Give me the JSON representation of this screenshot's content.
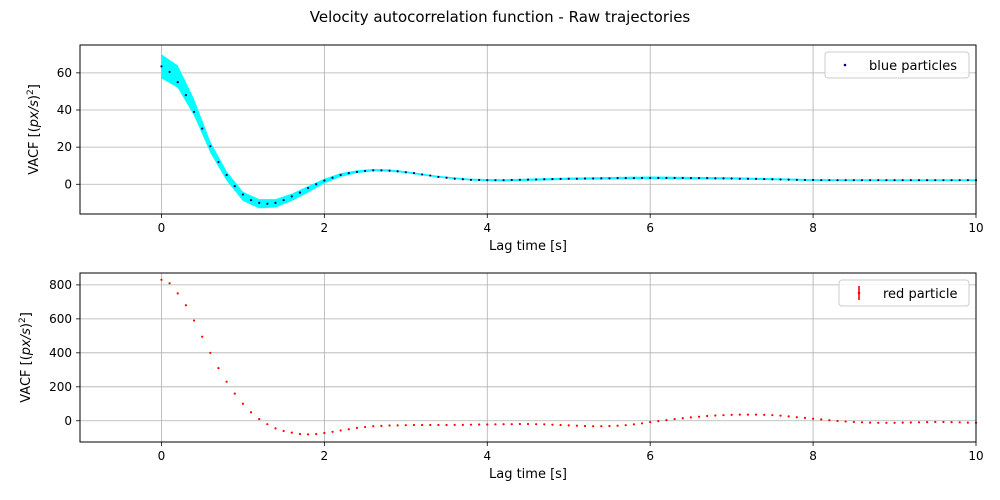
{
  "figure": {
    "title": "Velocity autocorrelation function - Raw trajectories"
  },
  "colors": {
    "band": "#00ffff",
    "blue_markers": "#00008b",
    "red_markers": "#ff0000",
    "grid": "#b0b0b0"
  },
  "chart_data": [
    {
      "type": "scatter",
      "xlabel": "Lag time [s]",
      "ylabel_main": "VACF [(",
      "ylabel_italic": "px/s",
      "ylabel_close": ")",
      "ylabel_sup": "2",
      "ylabel_end": "]",
      "xlim": [
        -1,
        10
      ],
      "ylim": [
        -16,
        75
      ],
      "xticks": [
        0,
        2,
        4,
        6,
        8,
        10
      ],
      "yticks": [
        0,
        20,
        40,
        60
      ],
      "grid": true,
      "legend": {
        "position": "top-right",
        "label": "blue particles"
      },
      "band": {
        "color": "#00ffff",
        "upper": [
          [
            0,
            70
          ],
          [
            0.2,
            64
          ],
          [
            0.4,
            46
          ],
          [
            0.6,
            23
          ],
          [
            0.8,
            7
          ],
          [
            1.0,
            -4
          ],
          [
            1.2,
            -8
          ],
          [
            1.4,
            -8
          ],
          [
            1.6,
            -5
          ],
          [
            1.8,
            -1
          ],
          [
            2.0,
            3
          ],
          [
            2.2,
            6
          ],
          [
            2.4,
            7.5
          ],
          [
            2.6,
            8.2
          ],
          [
            2.8,
            8
          ],
          [
            3.0,
            7
          ],
          [
            3.4,
            4.5
          ],
          [
            3.8,
            3
          ],
          [
            4.2,
            2.7
          ],
          [
            5,
            3.6
          ],
          [
            6,
            4.2
          ],
          [
            7,
            3.8
          ],
          [
            8,
            2.8
          ],
          [
            9,
            2.7
          ],
          [
            10,
            2.7
          ]
        ],
        "lower": [
          [
            0,
            57
          ],
          [
            0.2,
            52
          ],
          [
            0.4,
            37
          ],
          [
            0.6,
            17
          ],
          [
            0.8,
            2
          ],
          [
            1.0,
            -9
          ],
          [
            1.2,
            -13
          ],
          [
            1.4,
            -12.5
          ],
          [
            1.6,
            -9
          ],
          [
            1.8,
            -4.5
          ],
          [
            2.0,
            0.5
          ],
          [
            2.2,
            4
          ],
          [
            2.4,
            6
          ],
          [
            2.6,
            7
          ],
          [
            2.8,
            6.8
          ],
          [
            3.0,
            6
          ],
          [
            3.4,
            3.6
          ],
          [
            3.8,
            2
          ],
          [
            4.2,
            1.5
          ],
          [
            5,
            2.4
          ],
          [
            6,
            2.8
          ],
          [
            7,
            2.6
          ],
          [
            8,
            1.8
          ],
          [
            9,
            1.7
          ],
          [
            10,
            1.7
          ]
        ]
      },
      "series": [
        {
          "name": "blue particles",
          "color": "#00008b",
          "points": [
            [
              0,
              63.5
            ],
            [
              0.1,
              60.5
            ],
            [
              0.2,
              55
            ],
            [
              0.3,
              48
            ],
            [
              0.4,
              39
            ],
            [
              0.5,
              30
            ],
            [
              0.6,
              20.5
            ],
            [
              0.7,
              12
            ],
            [
              0.8,
              5
            ],
            [
              0.9,
              -1
            ],
            [
              1.0,
              -5.5
            ],
            [
              1.1,
              -8.5
            ],
            [
              1.2,
              -10
            ],
            [
              1.3,
              -10.5
            ],
            [
              1.4,
              -10
            ],
            [
              1.5,
              -8.5
            ],
            [
              1.6,
              -6.5
            ],
            [
              1.7,
              -4.5
            ],
            [
              1.8,
              -2
            ],
            [
              1.9,
              0
            ],
            [
              2.0,
              2
            ],
            [
              2.1,
              3.5
            ],
            [
              2.2,
              5
            ],
            [
              2.3,
              6
            ],
            [
              2.4,
              6.7
            ],
            [
              2.5,
              7.2
            ],
            [
              2.6,
              7.5
            ],
            [
              2.7,
              7.5
            ],
            [
              2.8,
              7.3
            ],
            [
              2.9,
              7
            ],
            [
              3.0,
              6.5
            ],
            [
              3.1,
              6
            ],
            [
              3.2,
              5.3
            ],
            [
              3.3,
              4.7
            ],
            [
              3.4,
              4
            ],
            [
              3.5,
              3.5
            ],
            [
              3.6,
              3
            ],
            [
              3.7,
              2.7
            ],
            [
              3.8,
              2.4
            ],
            [
              3.9,
              2.3
            ],
            [
              4.0,
              2.2
            ],
            [
              4.1,
              2.2
            ],
            [
              4.2,
              2.2
            ],
            [
              4.3,
              2.3
            ],
            [
              4.4,
              2.4
            ],
            [
              4.5,
              2.5
            ],
            [
              4.6,
              2.6
            ],
            [
              4.7,
              2.7
            ],
            [
              4.8,
              2.8
            ],
            [
              4.9,
              2.9
            ],
            [
              5.0,
              3.0
            ],
            [
              5.1,
              3.0
            ],
            [
              5.2,
              3.1
            ],
            [
              5.3,
              3.1
            ],
            [
              5.4,
              3.2
            ],
            [
              5.5,
              3.2
            ],
            [
              5.6,
              3.3
            ],
            [
              5.7,
              3.3
            ],
            [
              5.8,
              3.3
            ],
            [
              5.9,
              3.4
            ],
            [
              6.0,
              3.4
            ],
            [
              6.1,
              3.4
            ],
            [
              6.2,
              3.4
            ],
            [
              6.3,
              3.4
            ],
            [
              6.4,
              3.4
            ],
            [
              6.5,
              3.3
            ],
            [
              6.6,
              3.3
            ],
            [
              6.7,
              3.3
            ],
            [
              6.8,
              3.2
            ],
            [
              6.9,
              3.2
            ],
            [
              7.0,
              3.1
            ],
            [
              7.1,
              3.0
            ],
            [
              7.2,
              3.0
            ],
            [
              7.3,
              2.9
            ],
            [
              7.4,
              2.8
            ],
            [
              7.5,
              2.7
            ],
            [
              7.6,
              2.6
            ],
            [
              7.7,
              2.5
            ],
            [
              7.8,
              2.4
            ],
            [
              7.9,
              2.3
            ],
            [
              8.0,
              2.3
            ],
            [
              8.1,
              2.2
            ],
            [
              8.2,
              2.2
            ],
            [
              8.3,
              2.2
            ],
            [
              8.4,
              2.2
            ],
            [
              8.5,
              2.2
            ],
            [
              8.6,
              2.2
            ],
            [
              8.7,
              2.2
            ],
            [
              8.8,
              2.2
            ],
            [
              8.9,
              2.2
            ],
            [
              9.0,
              2.2
            ],
            [
              9.1,
              2.2
            ],
            [
              9.2,
              2.2
            ],
            [
              9.3,
              2.2
            ],
            [
              9.4,
              2.2
            ],
            [
              9.5,
              2.2
            ],
            [
              9.6,
              2.2
            ],
            [
              9.7,
              2.2
            ],
            [
              9.8,
              2.2
            ],
            [
              9.9,
              2.2
            ],
            [
              10.0,
              2.2
            ]
          ]
        }
      ]
    },
    {
      "type": "scatter",
      "xlabel": "Lag time [s]",
      "ylabel_main": "VACF [(",
      "ylabel_italic": "px/s",
      "ylabel_close": ")",
      "ylabel_sup": "2",
      "ylabel_end": "]",
      "xlim": [
        -1,
        10
      ],
      "ylim": [
        -125,
        870
      ],
      "xticks": [
        0,
        2,
        4,
        6,
        8,
        10
      ],
      "yticks": [
        0,
        200,
        400,
        600,
        800
      ],
      "grid": true,
      "legend": {
        "position": "top-right",
        "label": "red particle"
      },
      "series": [
        {
          "name": "red particle",
          "color": "#ff0000",
          "points": [
            [
              0,
              830
            ],
            [
              0.1,
              810
            ],
            [
              0.2,
              750
            ],
            [
              0.3,
              680
            ],
            [
              0.4,
              590
            ],
            [
              0.5,
              495
            ],
            [
              0.6,
              400
            ],
            [
              0.7,
              310
            ],
            [
              0.8,
              230
            ],
            [
              0.9,
              160
            ],
            [
              1.0,
              100
            ],
            [
              1.1,
              50
            ],
            [
              1.2,
              10
            ],
            [
              1.3,
              -20
            ],
            [
              1.4,
              -45
            ],
            [
              1.5,
              -60
            ],
            [
              1.6,
              -70
            ],
            [
              1.7,
              -78
            ],
            [
              1.8,
              -80
            ],
            [
              1.9,
              -78
            ],
            [
              2.0,
              -72
            ],
            [
              2.1,
              -65
            ],
            [
              2.2,
              -57
            ],
            [
              2.3,
              -50
            ],
            [
              2.4,
              -42
            ],
            [
              2.5,
              -37
            ],
            [
              2.6,
              -32
            ],
            [
              2.7,
              -30
            ],
            [
              2.8,
              -28
            ],
            [
              2.9,
              -27
            ],
            [
              3.0,
              -26
            ],
            [
              3.1,
              -25
            ],
            [
              3.2,
              -25
            ],
            [
              3.3,
              -25
            ],
            [
              3.4,
              -25
            ],
            [
              3.5,
              -25
            ],
            [
              3.6,
              -24
            ],
            [
              3.7,
              -24
            ],
            [
              3.8,
              -23
            ],
            [
              3.9,
              -22
            ],
            [
              4.0,
              -22
            ],
            [
              4.1,
              -21
            ],
            [
              4.2,
              -20
            ],
            [
              4.3,
              -20
            ],
            [
              4.4,
              -19
            ],
            [
              4.5,
              -19
            ],
            [
              4.6,
              -20
            ],
            [
              4.7,
              -21
            ],
            [
              4.8,
              -23
            ],
            [
              4.9,
              -25
            ],
            [
              5.0,
              -27
            ],
            [
              5.1,
              -29
            ],
            [
              5.2,
              -31
            ],
            [
              5.3,
              -32
            ],
            [
              5.4,
              -32
            ],
            [
              5.5,
              -31
            ],
            [
              5.6,
              -29
            ],
            [
              5.7,
              -26
            ],
            [
              5.8,
              -21
            ],
            [
              5.9,
              -15
            ],
            [
              6.0,
              -8
            ],
            [
              6.1,
              -2
            ],
            [
              6.2,
              4
            ],
            [
              6.3,
              10
            ],
            [
              6.4,
              15
            ],
            [
              6.5,
              20
            ],
            [
              6.6,
              24
            ],
            [
              6.7,
              28
            ],
            [
              6.8,
              31
            ],
            [
              6.9,
              33
            ],
            [
              7.0,
              35
            ],
            [
              7.1,
              36
            ],
            [
              7.2,
              36
            ],
            [
              7.3,
              36
            ],
            [
              7.4,
              35
            ],
            [
              7.5,
              33
            ],
            [
              7.6,
              30
            ],
            [
              7.7,
              26
            ],
            [
              7.8,
              21
            ],
            [
              7.9,
              17
            ],
            [
              8.0,
              12
            ],
            [
              8.1,
              8
            ],
            [
              8.2,
              3
            ],
            [
              8.3,
              -1
            ],
            [
              8.4,
              -4
            ],
            [
              8.5,
              -7
            ],
            [
              8.6,
              -9
            ],
            [
              8.7,
              -11
            ],
            [
              8.8,
              -12
            ],
            [
              8.9,
              -12
            ],
            [
              9.0,
              -12
            ],
            [
              9.1,
              -11
            ],
            [
              9.2,
              -10
            ],
            [
              9.3,
              -9
            ],
            [
              9.4,
              -8
            ],
            [
              9.5,
              -7
            ],
            [
              9.6,
              -7
            ],
            [
              9.7,
              -8
            ],
            [
              9.8,
              -9
            ],
            [
              9.9,
              -11
            ],
            [
              10.0,
              -12
            ]
          ]
        }
      ]
    }
  ]
}
